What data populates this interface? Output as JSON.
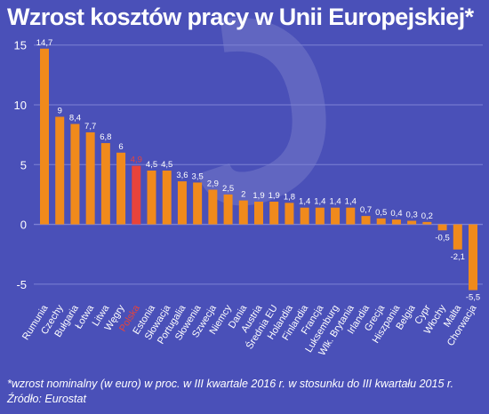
{
  "chart_data": {
    "type": "bar",
    "title": "Wzrost kosztów pracy w Unii Europejskiej*",
    "categories": [
      "Rumunia",
      "Czechy",
      "Bułgaria",
      "Łotwa",
      "Litwa",
      "Węgry",
      "Polska",
      "Estonia",
      "Słowacja",
      "Portugalia",
      "Słowenia",
      "Szwecja",
      "Niemcy",
      "Dania",
      "Austria",
      "Średnia EU",
      "Holandia",
      "Finlandia",
      "Francja",
      "Luksemburg",
      "Wlk. Brytania",
      "Irlandia",
      "Grecja",
      "Hiszpania",
      "Belgia",
      "Cypr",
      "Włochy",
      "Malta",
      "Chorwacja"
    ],
    "values": [
      14.7,
      9,
      8.4,
      7.7,
      6.8,
      6,
      4.9,
      4.5,
      4.5,
      3.6,
      3.5,
      2.9,
      2.5,
      2,
      1.9,
      1.9,
      1.8,
      1.4,
      1.4,
      1.4,
      1.4,
      0.7,
      0.5,
      0.4,
      0.3,
      0.2,
      -0.5,
      -2.1,
      -5.5
    ],
    "value_labels": [
      "14,7",
      "9",
      "8,4",
      "7,7",
      "6,8",
      "6",
      "4,9",
      "4,5",
      "4,5",
      "3,6",
      "3,5",
      "2,9",
      "2,5",
      "2",
      "1,9",
      "1,9",
      "1,8",
      "1,4",
      "1,4",
      "1,4",
      "1,4",
      "0,7",
      "0,5",
      "0,4",
      "0,3",
      "0,2",
      "-0,5",
      "-2,1",
      "-5,5"
    ],
    "highlight": "Polska",
    "ylim": [
      -6.5,
      15.5
    ],
    "yticks": [
      15,
      10,
      5,
      0,
      -5
    ],
    "ytick_labels": [
      "15",
      "10",
      "5",
      "0",
      "-5"
    ],
    "grid": true,
    "colors": {
      "background": "#4a50b8",
      "bar": "#f08a1c",
      "highlight_bar": "#e8433a",
      "highlight_text": "#e8433a",
      "text": "#ffffff",
      "grid": "#7d82d4"
    }
  },
  "footnote": {
    "line1": "*wzrost nominalny (w euro) w proc. w III kwartale 2016 r. w stosunku do III kwartału 2015 r.",
    "line2": "Źródło: Eurostat"
  }
}
